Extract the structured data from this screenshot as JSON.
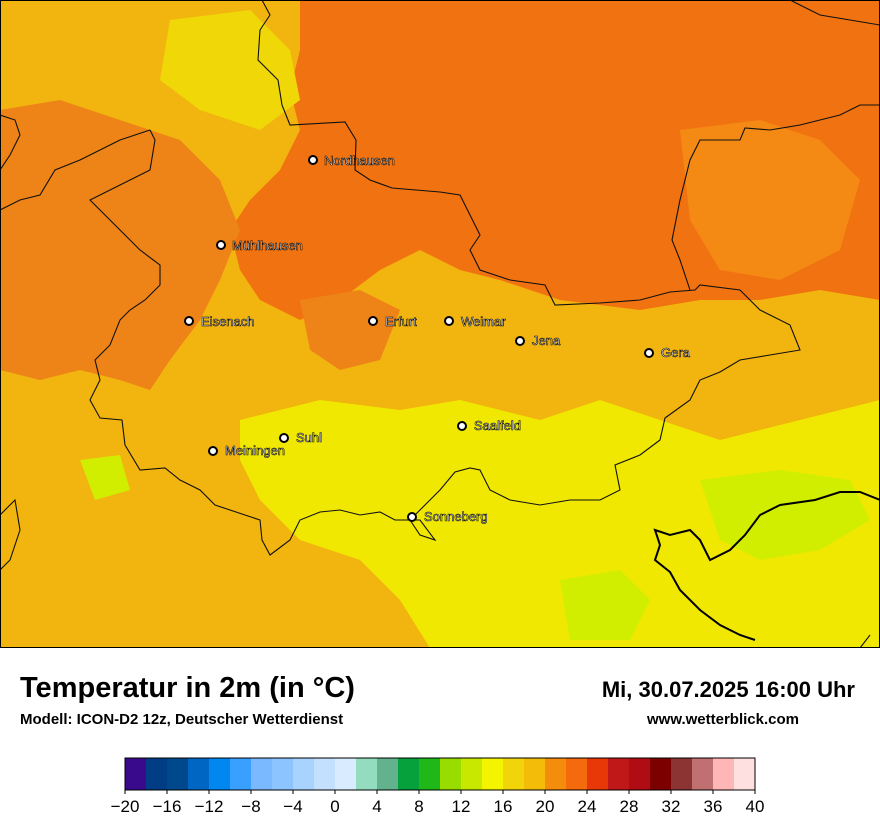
{
  "title": "Temperatur in 2m (in °C)",
  "subtitle": "Modell: ICON-D2 12z, Deutscher Wetterdienst",
  "datetime": "Mi, 30.07.2025 16:00 Uhr",
  "website": "www.wetterblick.com",
  "cities": [
    {
      "name": "Nordhausen"
    },
    {
      "name": "Mühlhausen"
    },
    {
      "name": "Eisenach"
    },
    {
      "name": "Erfurt"
    },
    {
      "name": "Weimar"
    },
    {
      "name": "Jena"
    },
    {
      "name": "Gera"
    },
    {
      "name": "Suhl"
    },
    {
      "name": "Meiningen"
    },
    {
      "name": "Saalfeld"
    },
    {
      "name": "Sonneberg"
    }
  ],
  "legend": {
    "colors": [
      "#3a0a8c",
      "#003d85",
      "#00488c",
      "#0066c4",
      "#0088f0",
      "#3aa0ff",
      "#7ab9ff",
      "#8cc4ff",
      "#a8d3ff",
      "#c4e0ff",
      "#d8ebff",
      "#93dcbf",
      "#62b28d",
      "#06a03c",
      "#20b818",
      "#98dc00",
      "#c8e800",
      "#f4f400",
      "#f2d40a",
      "#f2bc08",
      "#f48c0c",
      "#f46a0c",
      "#e83808",
      "#c01818",
      "#b00c14",
      "#7c0000",
      "#8c3434",
      "#c07070",
      "#ffb6b6",
      "#ffe0e0"
    ],
    "tick_labels": [
      "−20",
      "−16",
      "−12",
      "−8",
      "−4",
      "0",
      "4",
      "8",
      "12",
      "16",
      "20",
      "24",
      "28",
      "32",
      "36",
      "40"
    ]
  }
}
